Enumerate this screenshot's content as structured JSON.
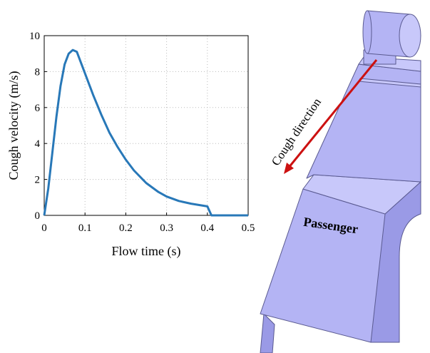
{
  "chart_data": {
    "type": "line",
    "xlabel": "Flow time (s)",
    "ylabel": "Cough velocity (m/s)",
    "x": [
      0,
      0.01,
      0.02,
      0.03,
      0.04,
      0.05,
      0.06,
      0.07,
      0.08,
      0.09,
      0.1,
      0.12,
      0.14,
      0.16,
      0.18,
      0.2,
      0.22,
      0.25,
      0.28,
      0.3,
      0.33,
      0.36,
      0.4,
      0.41,
      0.5
    ],
    "values": [
      0,
      1.5,
      3.5,
      5.5,
      7.2,
      8.4,
      9.0,
      9.2,
      9.1,
      8.5,
      7.9,
      6.7,
      5.6,
      4.6,
      3.8,
      3.1,
      2.5,
      1.8,
      1.3,
      1.05,
      0.8,
      0.65,
      0.5,
      0,
      0
    ],
    "color": "#2878b8",
    "xlim": [
      0,
      0.5
    ],
    "xticks": [
      0,
      0.1,
      0.2,
      0.3,
      0.4,
      0.5
    ],
    "ylim": [
      0,
      10
    ],
    "yticks": [
      0,
      2,
      4,
      6,
      8,
      10
    ],
    "grid": true
  },
  "figure": {
    "arrow_label": "Cough direction",
    "seat_label": "Passenger"
  }
}
